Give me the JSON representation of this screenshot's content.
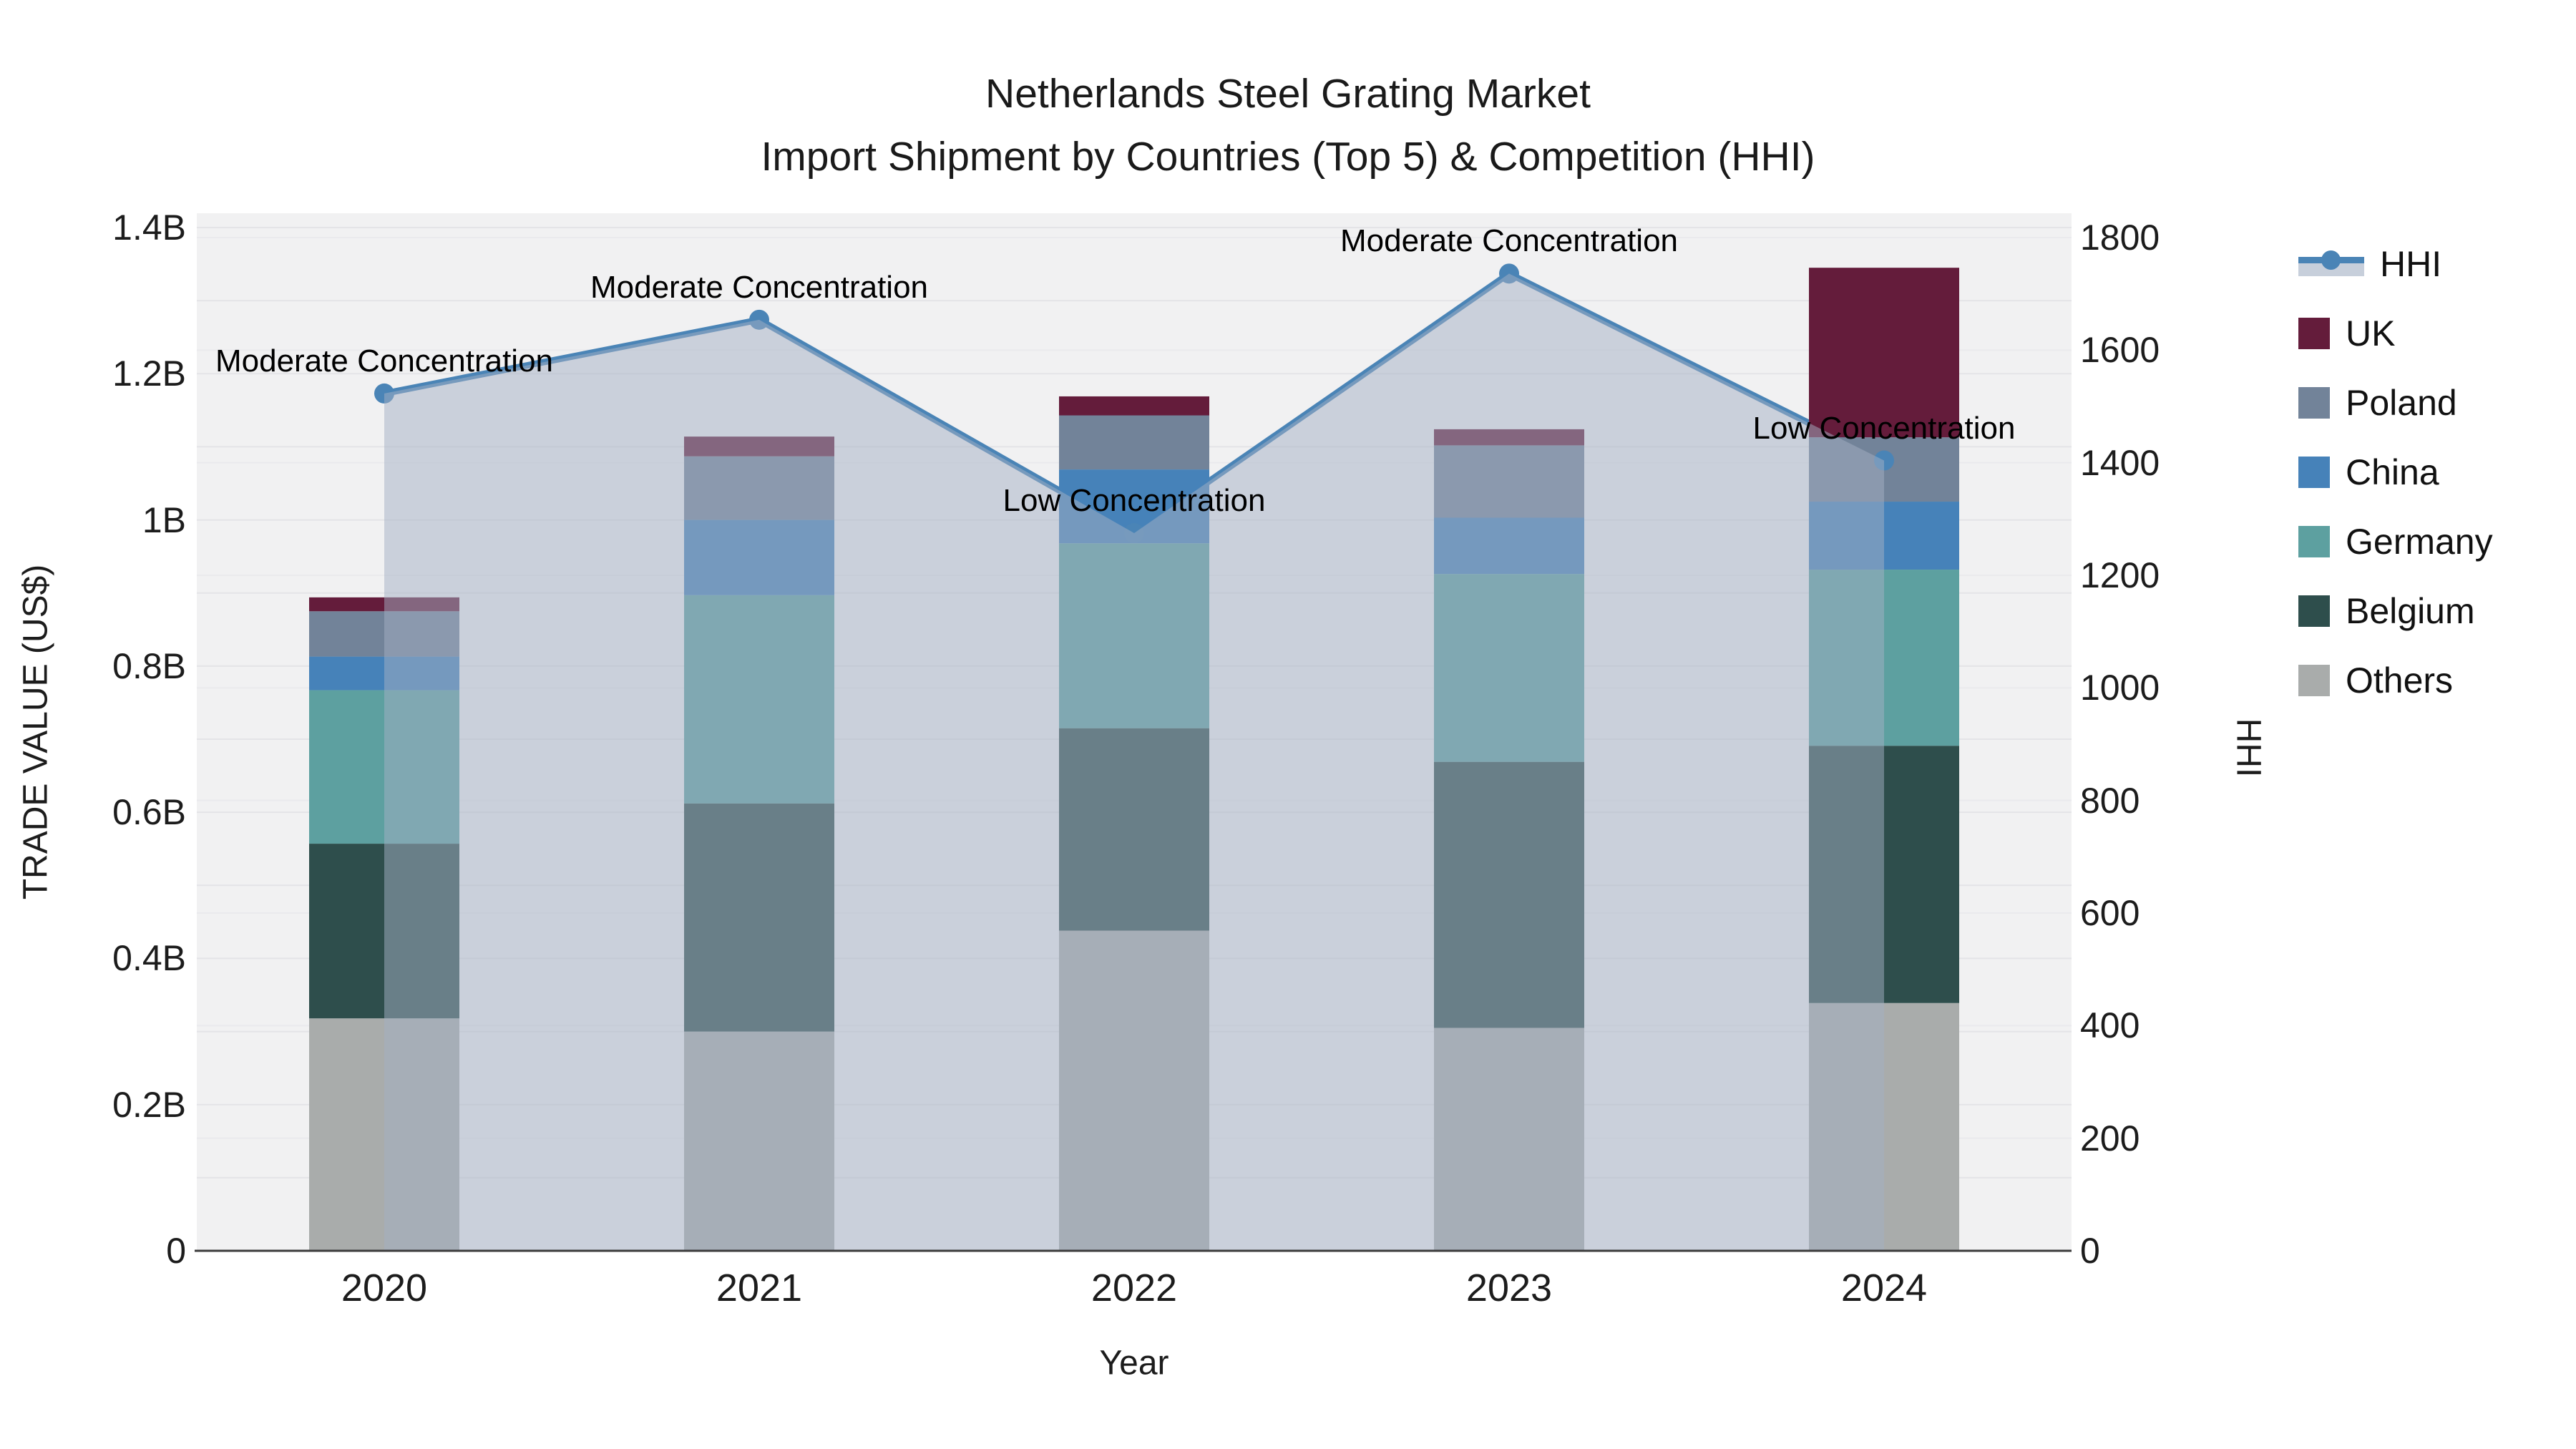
{
  "title": {
    "line1": "Netherlands Steel Grating Market",
    "line2": "Import Shipment by Countries (Top 5) & Competition (HHI)"
  },
  "axes": {
    "x": {
      "title": "Year",
      "categories": [
        "2020",
        "2021",
        "2022",
        "2023",
        "2024"
      ]
    },
    "y_left": {
      "title": "TRADE VALUE (US$)",
      "ticks": [
        {
          "label": "0",
          "value": 0
        },
        {
          "label": "0.2B",
          "value": 0.2
        },
        {
          "label": "0.4B",
          "value": 0.4
        },
        {
          "label": "0.6B",
          "value": 0.6
        },
        {
          "label": "0.8B",
          "value": 0.8
        },
        {
          "label": "1B",
          "value": 1.0
        },
        {
          "label": "1.2B",
          "value": 1.2
        },
        {
          "label": "1.4B",
          "value": 1.4
        }
      ]
    },
    "y_right": {
      "title": "HHI",
      "ticks": [
        {
          "label": "0",
          "value": 0
        },
        {
          "label": "200",
          "value": 200
        },
        {
          "label": "400",
          "value": 400
        },
        {
          "label": "600",
          "value": 600
        },
        {
          "label": "800",
          "value": 800
        },
        {
          "label": "1000",
          "value": 1000
        },
        {
          "label": "1200",
          "value": 1200
        },
        {
          "label": "1400",
          "value": 1400
        },
        {
          "label": "1600",
          "value": 1600
        },
        {
          "label": "1800",
          "value": 1800
        }
      ]
    }
  },
  "chart_data": {
    "type": "bar",
    "subtype": "stacked-bars-with-line-overlay",
    "categories": [
      "2020",
      "2021",
      "2022",
      "2023",
      "2024"
    ],
    "units": "billions US$",
    "ylim": [
      0,
      1.4
    ],
    "y2lim": [
      0,
      1800
    ],
    "grid": true,
    "legend_position": "right",
    "series": [
      {
        "name": "Others",
        "values": [
          0.318,
          0.3,
          0.438,
          0.305,
          0.339
        ]
      },
      {
        "name": "Belgium",
        "values": [
          0.239,
          0.312,
          0.277,
          0.364,
          0.352
        ]
      },
      {
        "name": "Germany",
        "values": [
          0.21,
          0.285,
          0.253,
          0.257,
          0.241
        ]
      },
      {
        "name": "China",
        "values": [
          0.046,
          0.103,
          0.101,
          0.077,
          0.093
        ]
      },
      {
        "name": "Poland",
        "values": [
          0.062,
          0.087,
          0.074,
          0.099,
          0.088
        ]
      },
      {
        "name": "UK",
        "values": [
          0.019,
          0.027,
          0.026,
          0.022,
          0.232
        ]
      }
    ],
    "line_series": {
      "name": "HHI",
      "axis": "right",
      "values": [
        1523,
        1654,
        1275,
        1736,
        1404
      ],
      "area_fill": true
    },
    "annotations": [
      {
        "year": "2020",
        "text": "Moderate Concentration"
      },
      {
        "year": "2021",
        "text": "Moderate Concentration"
      },
      {
        "year": "2022",
        "text": "Low Concentration"
      },
      {
        "year": "2023",
        "text": "Moderate Concentration"
      },
      {
        "year": "2024",
        "text": "Low Concentration"
      }
    ]
  },
  "legend": {
    "items": [
      {
        "label": "HHI",
        "type": "line"
      },
      {
        "label": "UK",
        "type": "square"
      },
      {
        "label": "Poland",
        "type": "square"
      },
      {
        "label": "China",
        "type": "square"
      },
      {
        "label": "Germany",
        "type": "square"
      },
      {
        "label": "Belgium",
        "type": "square"
      },
      {
        "label": "Others",
        "type": "square"
      }
    ]
  },
  "colors": {
    "UK": "#641C3B",
    "Poland": "#728399",
    "China": "#4682B9",
    "Germany": "#5DA0A0",
    "Belgium": "#2E4E4C",
    "Others": "#A9ACAB",
    "hhi_line": "#4A84B6",
    "hhi_area": "rgba(164,176,196,0.5)",
    "plot_bg": "#F1F1F2",
    "grid_left": "#E4E4E7",
    "grid_right": "#EAEAED",
    "axis_line": "#3C3C3C"
  }
}
